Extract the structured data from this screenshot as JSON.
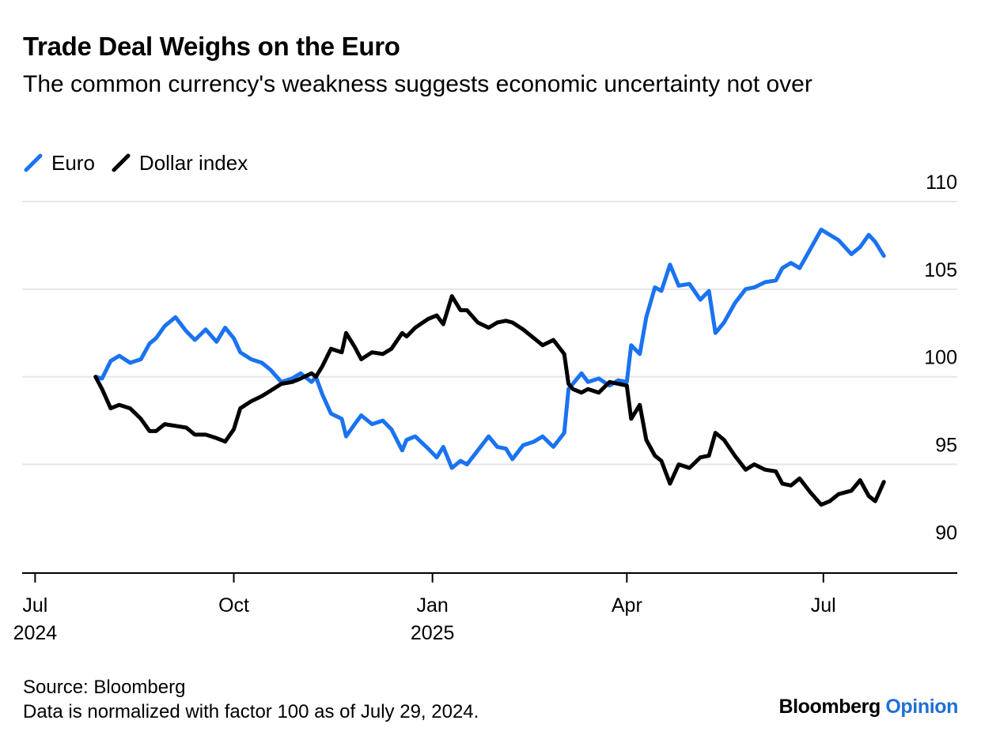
{
  "header": {
    "title": "Trade Deal Weighs on the Euro",
    "subtitle": "The common currency's weakness suggests economic uncertainty not over"
  },
  "footer": {
    "source": "Source: Bloomberg",
    "note": "Data is normalized with factor 100 as of July 29, 2024.",
    "brand_main": "Bloomberg",
    "brand_accent": "Opinion"
  },
  "colors": {
    "euro": "#1a73f0",
    "dollar": "#000000",
    "grid": "#e6e6e6",
    "axis": "#000000",
    "brand_accent": "#1f6fd6"
  },
  "chart_data": {
    "type": "line",
    "title": "Trade Deal Weighs on the Euro",
    "subtitle": "The common currency's weakness suggests economic uncertainty not over",
    "xlabel": "",
    "ylabel": "",
    "x_type": "date",
    "xlim": [
      "2024-06-25",
      "2025-09-01"
    ],
    "ylim": [
      88.8,
      110
    ],
    "y_ticks": [
      90,
      95,
      100,
      105,
      110
    ],
    "y_axis_side": "right",
    "grid": true,
    "legend_position": "top-left",
    "x_ticks": [
      {
        "date": "2024-07-01",
        "label": "Jul",
        "sublabel": "2024"
      },
      {
        "date": "2024-10-01",
        "label": "Oct",
        "sublabel": ""
      },
      {
        "date": "2025-01-01",
        "label": "Jan",
        "sublabel": "2025"
      },
      {
        "date": "2025-04-01",
        "label": "Apr",
        "sublabel": ""
      },
      {
        "date": "2025-07-01",
        "label": "Jul",
        "sublabel": ""
      }
    ],
    "series": [
      {
        "name": "Euro",
        "color": "#1a73f0",
        "points": [
          [
            "2024-07-29",
            100.0
          ],
          [
            "2024-08-01",
            99.9
          ],
          [
            "2024-08-05",
            100.9
          ],
          [
            "2024-08-09",
            101.2
          ],
          [
            "2024-08-14",
            100.8
          ],
          [
            "2024-08-19",
            101.0
          ],
          [
            "2024-08-23",
            101.9
          ],
          [
            "2024-08-26",
            102.2
          ],
          [
            "2024-08-30",
            102.9
          ],
          [
            "2024-09-04",
            103.4
          ],
          [
            "2024-09-09",
            102.6
          ],
          [
            "2024-09-13",
            102.1
          ],
          [
            "2024-09-18",
            102.7
          ],
          [
            "2024-09-23",
            102.0
          ],
          [
            "2024-09-27",
            102.8
          ],
          [
            "2024-10-01",
            102.2
          ],
          [
            "2024-10-04",
            101.4
          ],
          [
            "2024-10-09",
            101.0
          ],
          [
            "2024-10-14",
            100.8
          ],
          [
            "2024-10-18",
            100.4
          ],
          [
            "2024-10-23",
            99.7
          ],
          [
            "2024-10-28",
            99.9
          ],
          [
            "2024-11-01",
            100.2
          ],
          [
            "2024-11-06",
            99.7
          ],
          [
            "2024-11-08",
            100.0
          ],
          [
            "2024-11-11",
            99.0
          ],
          [
            "2024-11-15",
            97.9
          ],
          [
            "2024-11-20",
            97.6
          ],
          [
            "2024-11-22",
            96.6
          ],
          [
            "2024-11-26",
            97.3
          ],
          [
            "2024-11-29",
            97.8
          ],
          [
            "2024-12-04",
            97.3
          ],
          [
            "2024-12-09",
            97.5
          ],
          [
            "2024-12-13",
            97.0
          ],
          [
            "2024-12-18",
            95.8
          ],
          [
            "2024-12-20",
            96.4
          ],
          [
            "2024-12-24",
            96.6
          ],
          [
            "2024-12-30",
            95.9
          ],
          [
            "2025-01-03",
            95.4
          ],
          [
            "2025-01-06",
            96.0
          ],
          [
            "2025-01-10",
            94.8
          ],
          [
            "2025-01-14",
            95.2
          ],
          [
            "2025-01-17",
            95.0
          ],
          [
            "2025-01-22",
            95.8
          ],
          [
            "2025-01-27",
            96.6
          ],
          [
            "2025-01-31",
            96.0
          ],
          [
            "2025-02-04",
            95.9
          ],
          [
            "2025-02-07",
            95.3
          ],
          [
            "2025-02-12",
            96.1
          ],
          [
            "2025-02-17",
            96.3
          ],
          [
            "2025-02-21",
            96.6
          ],
          [
            "2025-02-26",
            96.0
          ],
          [
            "2025-03-03",
            96.8
          ],
          [
            "2025-03-05",
            99.3
          ],
          [
            "2025-03-07",
            99.6
          ],
          [
            "2025-03-11",
            100.2
          ],
          [
            "2025-03-14",
            99.7
          ],
          [
            "2025-03-19",
            99.9
          ],
          [
            "2025-03-24",
            99.5
          ],
          [
            "2025-03-28",
            99.8
          ],
          [
            "2025-04-01",
            99.7
          ],
          [
            "2025-04-03",
            101.8
          ],
          [
            "2025-04-07",
            101.3
          ],
          [
            "2025-04-10",
            103.4
          ],
          [
            "2025-04-14",
            105.1
          ],
          [
            "2025-04-17",
            104.9
          ],
          [
            "2025-04-21",
            106.4
          ],
          [
            "2025-04-25",
            105.2
          ],
          [
            "2025-04-30",
            105.3
          ],
          [
            "2025-05-05",
            104.4
          ],
          [
            "2025-05-09",
            104.9
          ],
          [
            "2025-05-12",
            102.5
          ],
          [
            "2025-05-16",
            103.1
          ],
          [
            "2025-05-21",
            104.2
          ],
          [
            "2025-05-26",
            105.0
          ],
          [
            "2025-05-30",
            105.1
          ],
          [
            "2025-06-04",
            105.4
          ],
          [
            "2025-06-09",
            105.5
          ],
          [
            "2025-06-12",
            106.2
          ],
          [
            "2025-06-16",
            106.5
          ],
          [
            "2025-06-20",
            106.2
          ],
          [
            "2025-06-25",
            107.3
          ],
          [
            "2025-06-30",
            108.4
          ],
          [
            "2025-07-04",
            108.1
          ],
          [
            "2025-07-08",
            107.8
          ],
          [
            "2025-07-14",
            107.0
          ],
          [
            "2025-07-18",
            107.4
          ],
          [
            "2025-07-22",
            108.1
          ],
          [
            "2025-07-25",
            107.7
          ],
          [
            "2025-07-29",
            106.9
          ]
        ]
      },
      {
        "name": "Dollar index",
        "color": "#000000",
        "points": [
          [
            "2024-07-29",
            100.0
          ],
          [
            "2024-08-01",
            99.3
          ],
          [
            "2024-08-05",
            98.2
          ],
          [
            "2024-08-09",
            98.4
          ],
          [
            "2024-08-14",
            98.2
          ],
          [
            "2024-08-19",
            97.6
          ],
          [
            "2024-08-23",
            96.9
          ],
          [
            "2024-08-26",
            96.9
          ],
          [
            "2024-08-30",
            97.3
          ],
          [
            "2024-09-04",
            97.2
          ],
          [
            "2024-09-09",
            97.1
          ],
          [
            "2024-09-13",
            96.7
          ],
          [
            "2024-09-18",
            96.7
          ],
          [
            "2024-09-23",
            96.5
          ],
          [
            "2024-09-27",
            96.3
          ],
          [
            "2024-10-01",
            97.0
          ],
          [
            "2024-10-04",
            98.2
          ],
          [
            "2024-10-09",
            98.6
          ],
          [
            "2024-10-14",
            98.9
          ],
          [
            "2024-10-18",
            99.2
          ],
          [
            "2024-10-23",
            99.6
          ],
          [
            "2024-10-28",
            99.7
          ],
          [
            "2024-11-01",
            99.9
          ],
          [
            "2024-11-06",
            100.2
          ],
          [
            "2024-11-08",
            100.0
          ],
          [
            "2024-11-11",
            100.6
          ],
          [
            "2024-11-15",
            101.6
          ],
          [
            "2024-11-20",
            101.4
          ],
          [
            "2024-11-22",
            102.5
          ],
          [
            "2024-11-26",
            101.7
          ],
          [
            "2024-11-29",
            101.0
          ],
          [
            "2024-12-04",
            101.4
          ],
          [
            "2024-12-09",
            101.3
          ],
          [
            "2024-12-13",
            101.6
          ],
          [
            "2024-12-18",
            102.5
          ],
          [
            "2024-12-20",
            102.3
          ],
          [
            "2024-12-24",
            102.8
          ],
          [
            "2024-12-30",
            103.3
          ],
          [
            "2025-01-03",
            103.5
          ],
          [
            "2025-01-06",
            103.0
          ],
          [
            "2025-01-10",
            104.6
          ],
          [
            "2025-01-14",
            103.8
          ],
          [
            "2025-01-17",
            103.8
          ],
          [
            "2025-01-22",
            103.1
          ],
          [
            "2025-01-27",
            102.8
          ],
          [
            "2025-01-31",
            103.1
          ],
          [
            "2025-02-04",
            103.2
          ],
          [
            "2025-02-07",
            103.1
          ],
          [
            "2025-02-12",
            102.7
          ],
          [
            "2025-02-17",
            102.2
          ],
          [
            "2025-02-21",
            101.8
          ],
          [
            "2025-02-26",
            102.1
          ],
          [
            "2025-03-03",
            101.3
          ],
          [
            "2025-03-05",
            99.6
          ],
          [
            "2025-03-07",
            99.3
          ],
          [
            "2025-03-11",
            99.1
          ],
          [
            "2025-03-14",
            99.3
          ],
          [
            "2025-03-19",
            99.1
          ],
          [
            "2025-03-24",
            99.7
          ],
          [
            "2025-03-28",
            99.6
          ],
          [
            "2025-04-01",
            99.5
          ],
          [
            "2025-04-03",
            97.6
          ],
          [
            "2025-04-07",
            98.4
          ],
          [
            "2025-04-10",
            96.4
          ],
          [
            "2025-04-14",
            95.5
          ],
          [
            "2025-04-17",
            95.2
          ],
          [
            "2025-04-21",
            93.9
          ],
          [
            "2025-04-25",
            95.0
          ],
          [
            "2025-04-30",
            94.8
          ],
          [
            "2025-05-05",
            95.4
          ],
          [
            "2025-05-09",
            95.5
          ],
          [
            "2025-05-12",
            96.8
          ],
          [
            "2025-05-16",
            96.4
          ],
          [
            "2025-05-21",
            95.5
          ],
          [
            "2025-05-26",
            94.7
          ],
          [
            "2025-05-30",
            95.0
          ],
          [
            "2025-06-04",
            94.7
          ],
          [
            "2025-06-09",
            94.6
          ],
          [
            "2025-06-12",
            93.9
          ],
          [
            "2025-06-16",
            93.8
          ],
          [
            "2025-06-20",
            94.2
          ],
          [
            "2025-06-25",
            93.4
          ],
          [
            "2025-06-30",
            92.7
          ],
          [
            "2025-07-04",
            92.9
          ],
          [
            "2025-07-08",
            93.3
          ],
          [
            "2025-07-14",
            93.5
          ],
          [
            "2025-07-18",
            94.1
          ],
          [
            "2025-07-22",
            93.2
          ],
          [
            "2025-07-25",
            92.9
          ],
          [
            "2025-07-29",
            94.0
          ]
        ]
      }
    ]
  }
}
